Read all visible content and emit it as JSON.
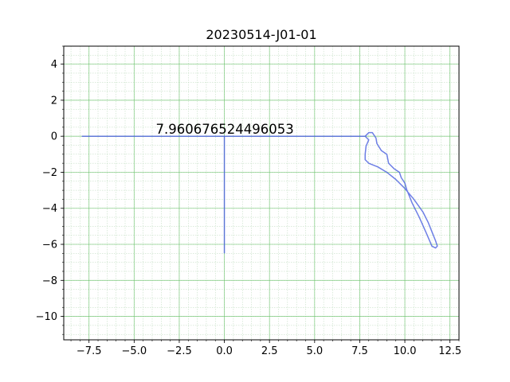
{
  "chart_data": {
    "type": "line",
    "title": "20230514-J01-01",
    "xlabel": "",
    "ylabel": "",
    "xlim": [
      -8.9,
      13.0
    ],
    "ylim": [
      -11.3,
      5.0
    ],
    "x_ticks": [
      -7.5,
      -5.0,
      -2.5,
      0.0,
      2.5,
      5.0,
      7.5,
      10.0,
      12.5
    ],
    "x_tick_labels": [
      "−7.5",
      "−5.0",
      "−2.5",
      "0.0",
      "2.5",
      "5.0",
      "7.5",
      "10.0",
      "12.5"
    ],
    "y_ticks": [
      4,
      2,
      0,
      -2,
      -4,
      -6,
      -8,
      -10
    ],
    "y_tick_labels": [
      "4",
      "2",
      "0",
      "−2",
      "−4",
      "−6",
      "−8",
      "−10"
    ],
    "grid": {
      "major": true,
      "minor": true,
      "color": "#6cc36c"
    },
    "line_color": "#4a5fe0",
    "annotation": {
      "text": "7.960676524496053",
      "x": -3.8,
      "y": 0.15
    },
    "series": [
      {
        "points": [
          [
            -7.9,
            0.0
          ],
          [
            7.8,
            0.0
          ],
          [
            8.0,
            -0.2
          ],
          [
            7.85,
            -0.55
          ],
          [
            7.8,
            -1.0
          ],
          [
            7.8,
            -1.3
          ],
          [
            8.0,
            -1.5
          ],
          [
            8.5,
            -1.7
          ],
          [
            9.0,
            -2.0
          ],
          [
            9.5,
            -2.4
          ],
          [
            10.0,
            -2.9
          ],
          [
            10.5,
            -3.5
          ],
          [
            11.0,
            -4.2
          ],
          [
            11.3,
            -4.8
          ],
          [
            11.5,
            -5.3
          ],
          [
            11.7,
            -5.8
          ],
          [
            11.8,
            -6.1
          ],
          [
            11.7,
            -6.2
          ],
          [
            11.5,
            -6.1
          ],
          [
            11.2,
            -5.4
          ],
          [
            10.8,
            -4.5
          ],
          [
            10.4,
            -3.7
          ],
          [
            10.1,
            -2.95
          ],
          [
            10.0,
            -2.6
          ],
          [
            9.8,
            -2.3
          ],
          [
            9.7,
            -2.0
          ],
          [
            9.4,
            -1.8
          ],
          [
            9.1,
            -1.5
          ],
          [
            9.0,
            -1.0
          ],
          [
            8.7,
            -0.8
          ],
          [
            8.45,
            -0.4
          ],
          [
            8.4,
            -0.1
          ],
          [
            8.2,
            0.2
          ],
          [
            8.0,
            0.2
          ],
          [
            7.8,
            0.0
          ]
        ]
      },
      {
        "points": [
          [
            0.0,
            0.0
          ],
          [
            0.0,
            -6.5
          ]
        ]
      }
    ]
  }
}
